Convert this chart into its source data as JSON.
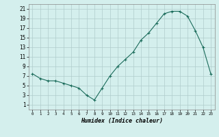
{
  "x": [
    0,
    1,
    2,
    3,
    4,
    5,
    6,
    7,
    8,
    9,
    10,
    11,
    12,
    13,
    14,
    15,
    16,
    17,
    18,
    19,
    20,
    21,
    22,
    23
  ],
  "y": [
    7.5,
    6.5,
    6.0,
    6.0,
    5.5,
    5.0,
    4.5,
    3.0,
    2.0,
    4.5,
    7.0,
    9.0,
    10.5,
    12.0,
    14.5,
    16.0,
    18.0,
    20.0,
    20.5,
    20.5,
    19.5,
    16.5,
    13.0,
    7.5
  ],
  "line_color": "#1a6b5a",
  "marker_color": "#1a6b5a",
  "bg_color": "#d4efed",
  "grid_color": "#b0cccb",
  "xlabel": "Humidex (Indice chaleur)",
  "ylim": [
    0,
    22
  ],
  "xlim": [
    -0.5,
    23.5
  ],
  "yticks": [
    1,
    3,
    5,
    7,
    9,
    11,
    13,
    15,
    17,
    19,
    21
  ],
  "xticks": [
    0,
    1,
    2,
    3,
    4,
    5,
    6,
    7,
    8,
    9,
    10,
    11,
    12,
    13,
    14,
    15,
    16,
    17,
    18,
    19,
    20,
    21,
    22,
    23
  ]
}
